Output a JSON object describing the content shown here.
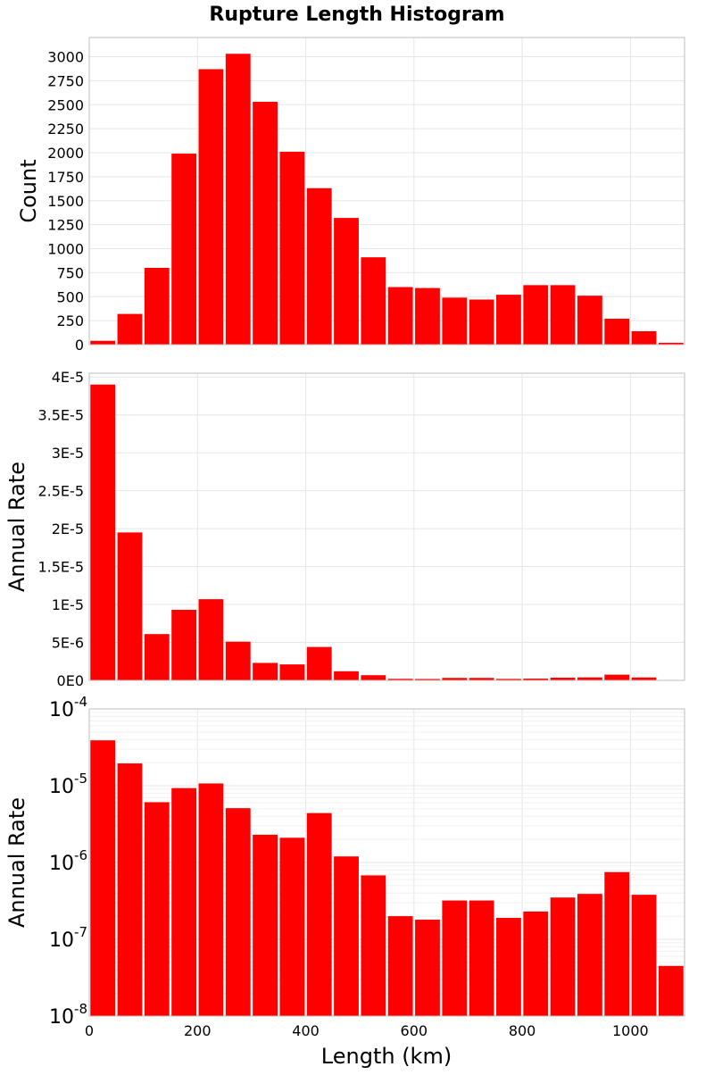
{
  "title": "Rupture Length Histogram",
  "colors": {
    "bar": "#ff0000",
    "bar_edge": "#ffffff",
    "grid": "#e6e6e6",
    "frame": "#bdbdbd"
  },
  "x_axis": {
    "label": "Length (km)",
    "range": [
      0,
      1100
    ],
    "ticks": [
      0,
      200,
      400,
      600,
      800,
      1000
    ],
    "tick_labels": [
      "0",
      "200",
      "400",
      "600",
      "800",
      "1000"
    ]
  },
  "chart_data": [
    {
      "type": "bar",
      "title": "Rupture Length Histogram",
      "ylabel": "Count",
      "bin_width": 50,
      "x": [
        25,
        75,
        125,
        175,
        225,
        275,
        325,
        375,
        425,
        475,
        525,
        575,
        625,
        675,
        725,
        775,
        825,
        875,
        925,
        975,
        1025,
        1075
      ],
      "values": [
        40,
        320,
        800,
        1990,
        2870,
        3030,
        2530,
        2010,
        1630,
        1320,
        910,
        600,
        590,
        490,
        470,
        520,
        620,
        620,
        510,
        270,
        140,
        20
      ],
      "ylim": [
        0,
        3200
      ],
      "yticks": [
        0,
        250,
        500,
        750,
        1000,
        1250,
        1500,
        1750,
        2000,
        2250,
        2500,
        2750,
        3000
      ],
      "ytick_labels": [
        "0",
        "250",
        "500",
        "750",
        "1000",
        "1250",
        "1500",
        "1750",
        "2000",
        "2250",
        "2500",
        "2750",
        "3000"
      ],
      "grid": true
    },
    {
      "type": "bar",
      "ylabel": "Annual Rate",
      "bin_width": 50,
      "x": [
        25,
        75,
        125,
        175,
        225,
        275,
        325,
        375,
        425,
        475,
        525,
        575,
        625,
        675,
        725,
        775,
        825,
        875,
        925,
        975,
        1025,
        1075
      ],
      "values": [
        3.9e-05,
        1.95e-05,
        6.1e-06,
        9.3e-06,
        1.07e-05,
        5.1e-06,
        2.3e-06,
        2.1e-06,
        4.4e-06,
        1.2e-06,
        6.8e-07,
        2e-07,
        1.8e-07,
        3.2e-07,
        3.2e-07,
        1.9e-07,
        2.3e-07,
        3.5e-07,
        3.9e-07,
        7.5e-07,
        3.8e-07,
        4.5e-08
      ],
      "ylim": [
        0,
        4.05e-05
      ],
      "yticks": [
        0,
        5e-06,
        1e-05,
        1.5e-05,
        2e-05,
        2.5e-05,
        3e-05,
        3.5e-05,
        4e-05
      ],
      "ytick_labels": [
        "0E0",
        "5E-6",
        "1E-5",
        "1.5E-5",
        "2E-5",
        "2.5E-5",
        "3E-5",
        "3.5E-5",
        "4E-5"
      ],
      "grid": true
    },
    {
      "type": "bar",
      "ylabel": "Annual Rate",
      "yscale": "log",
      "bin_width": 50,
      "x": [
        25,
        75,
        125,
        175,
        225,
        275,
        325,
        375,
        425,
        475,
        525,
        575,
        625,
        675,
        725,
        775,
        825,
        875,
        925,
        975,
        1025,
        1075
      ],
      "values": [
        3.9e-05,
        1.95e-05,
        6.1e-06,
        9.3e-06,
        1.07e-05,
        5.1e-06,
        2.3e-06,
        2.1e-06,
        4.4e-06,
        1.2e-06,
        6.8e-07,
        2e-07,
        1.8e-07,
        3.2e-07,
        3.2e-07,
        1.9e-07,
        2.3e-07,
        3.5e-07,
        3.9e-07,
        7.5e-07,
        3.8e-07,
        4.5e-08
      ],
      "ylim": [
        1e-08,
        0.0001
      ],
      "yticks": [
        1e-08,
        1e-07,
        1e-06,
        1e-05,
        0.0001
      ],
      "ytick_mantissa": [
        "10",
        "10",
        "10",
        "10",
        "10"
      ],
      "ytick_exponents": [
        "-8",
        "-7",
        "-6",
        "-5",
        "-4"
      ],
      "grid": true
    }
  ]
}
